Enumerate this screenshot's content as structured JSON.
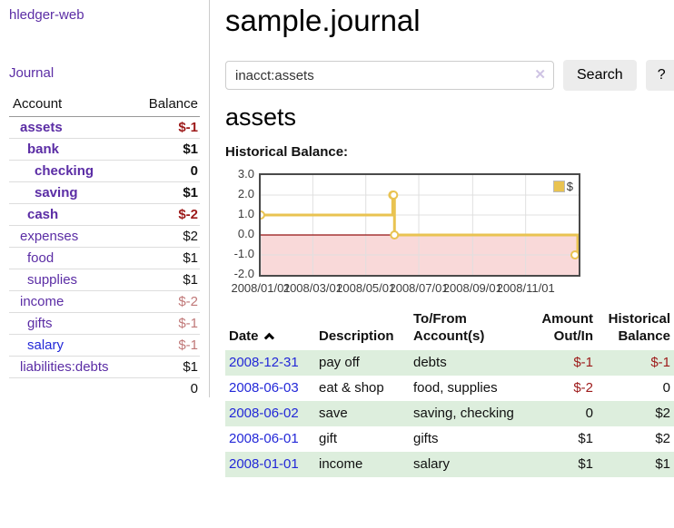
{
  "app": {
    "brand": "hledger-web"
  },
  "nav": {
    "journal": "Journal"
  },
  "sidebar": {
    "header": {
      "account": "Account",
      "balance": "Balance"
    },
    "accounts": [
      {
        "name": "assets",
        "balance": "$-1",
        "depth": 1,
        "bold": true,
        "neg": "strong"
      },
      {
        "name": "bank",
        "balance": "$1",
        "depth": 2,
        "bold": true,
        "neg": "none"
      },
      {
        "name": "checking",
        "balance": "0",
        "depth": 3,
        "bold": true,
        "neg": "none"
      },
      {
        "name": "saving",
        "balance": "$1",
        "depth": 3,
        "bold": true,
        "neg": "none"
      },
      {
        "name": "cash",
        "balance": "$-2",
        "depth": 2,
        "bold": true,
        "neg": "strong"
      },
      {
        "name": "expenses",
        "balance": "$2",
        "depth": 1,
        "bold": false,
        "neg": "none"
      },
      {
        "name": "food",
        "balance": "$1",
        "depth": 2,
        "bold": false,
        "neg": "none"
      },
      {
        "name": "supplies",
        "balance": "$1",
        "depth": 2,
        "bold": false,
        "neg": "none"
      },
      {
        "name": "income",
        "balance": "$-2",
        "depth": 1,
        "bold": false,
        "neg": "muted"
      },
      {
        "name": "gifts",
        "balance": "$-1",
        "depth": 2,
        "bold": false,
        "neg": "muted"
      },
      {
        "name": "salary",
        "balance": "$-1",
        "depth": 2,
        "bold": false,
        "neg": "muted",
        "blue": true
      },
      {
        "name": "liabilities:debts",
        "balance": "$1",
        "depth": 1,
        "bold": false,
        "neg": "none"
      }
    ],
    "total": "0"
  },
  "header": {
    "title": "sample.journal"
  },
  "search": {
    "value": "inacct:assets",
    "clear_label": "✕",
    "button_label": "Search",
    "help_label": "?"
  },
  "account_page": {
    "title": "assets",
    "chart_heading": "Historical Balance:"
  },
  "chart_data": {
    "type": "line",
    "step": true,
    "title": "Historical Balance",
    "series": [
      {
        "name": "$",
        "points": [
          [
            "2008-01-01",
            1
          ],
          [
            "2008-06-01",
            2
          ],
          [
            "2008-06-02",
            2
          ],
          [
            "2008-06-03",
            0
          ],
          [
            "2008-12-31",
            -1
          ]
        ]
      }
    ],
    "x_range": [
      "2008-01-01",
      "2009-01-01"
    ],
    "ylim": [
      -2,
      3
    ],
    "y_ticks": [
      3.0,
      2.0,
      1.0,
      0.0,
      -1.0,
      -2.0
    ],
    "y_tick_labels": [
      "3.0",
      "2.0",
      "1.0",
      "0.0",
      "-1.0",
      "-2.0"
    ],
    "x_ticks": [
      "2008-01-01",
      "2008-03-01",
      "2008-05-01",
      "2008-07-01",
      "2008-09-01",
      "2008-11-01"
    ],
    "x_tick_labels": [
      "2008/01/01",
      "2008/03/01",
      "2008/05/01",
      "2008/07/01",
      "2008/09/01",
      "2008/11/01"
    ],
    "legend": {
      "label": "$",
      "position": "top-right"
    },
    "colors": {
      "line": "#e9c351",
      "marker_fill": "#ffffff",
      "negative_fill": "#f9d9d9",
      "zero_line": "#941313",
      "grid": "#e0e0e0",
      "border": "#4a4a4a"
    }
  },
  "register": {
    "headers": {
      "date": "Date",
      "description": "Description",
      "accounts": "To/From Account(s)",
      "amount": "Amount Out/In",
      "balance": "Historical Balance"
    },
    "rows": [
      {
        "date": "2008-12-31",
        "description": "pay off",
        "accounts": "debts",
        "amount": "$-1",
        "balance": "$-1",
        "amount_neg": true,
        "balance_neg": true
      },
      {
        "date": "2008-06-03",
        "description": "eat & shop",
        "accounts": "food, supplies",
        "amount": "$-2",
        "balance": "0",
        "amount_neg": true,
        "balance_neg": false
      },
      {
        "date": "2008-06-02",
        "description": "save",
        "accounts": "saving, checking",
        "amount": "0",
        "balance": "$2",
        "amount_neg": false,
        "balance_neg": false
      },
      {
        "date": "2008-06-01",
        "description": "gift",
        "accounts": "gifts",
        "amount": "$1",
        "balance": "$2",
        "amount_neg": false,
        "balance_neg": false
      },
      {
        "date": "2008-01-01",
        "description": "income",
        "accounts": "salary",
        "amount": "$1",
        "balance": "$1",
        "amount_neg": false,
        "balance_neg": false
      }
    ]
  }
}
